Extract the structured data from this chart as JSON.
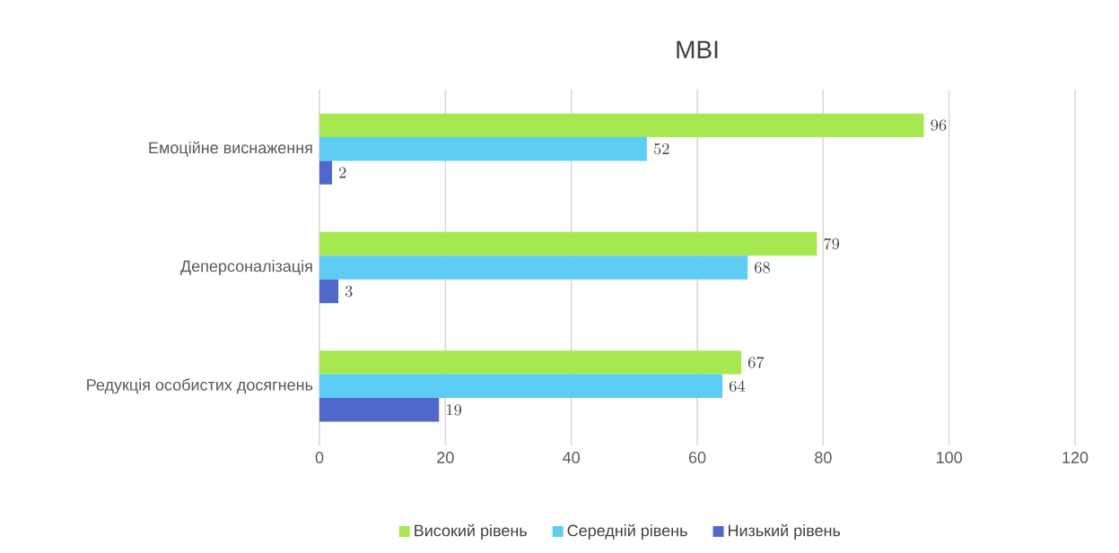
{
  "chart_data": {
    "type": "bar",
    "orientation": "horizontal",
    "title": "MBI",
    "categories": [
      "Емоційне виснаження",
      "Деперсоналізація",
      "Редукція особистих досягнень"
    ],
    "series": [
      {
        "name": "Високий рівень",
        "color": "#a6e84f",
        "values": [
          96,
          79,
          67
        ]
      },
      {
        "name": "Середній рівень",
        "color": "#5ecdf4",
        "values": [
          52,
          68,
          64
        ]
      },
      {
        "name": "Низький рівень",
        "color": "#4f68c9",
        "values": [
          2,
          3,
          19
        ]
      }
    ],
    "xlim": [
      0,
      120
    ],
    "xticks": [
      0,
      20,
      40,
      60,
      80,
      100,
      120
    ],
    "grid": "x",
    "legend": "bottom",
    "data_labels": true
  }
}
